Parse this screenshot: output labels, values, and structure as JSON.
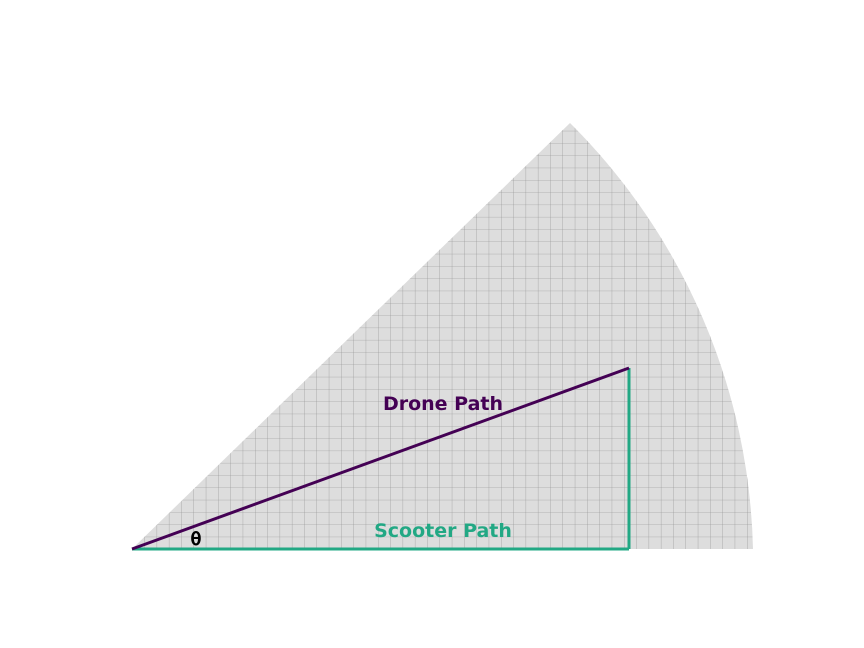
{
  "diagram": {
    "labels": {
      "drone": "Drone Path",
      "scooter": "Scooter Path",
      "angle": "θ"
    },
    "colors": {
      "drone": "#440154",
      "scooter": "#22a884",
      "sector_fill": "#dddddd",
      "grid": "#8a8a8a",
      "background": "#ffffff"
    }
  }
}
